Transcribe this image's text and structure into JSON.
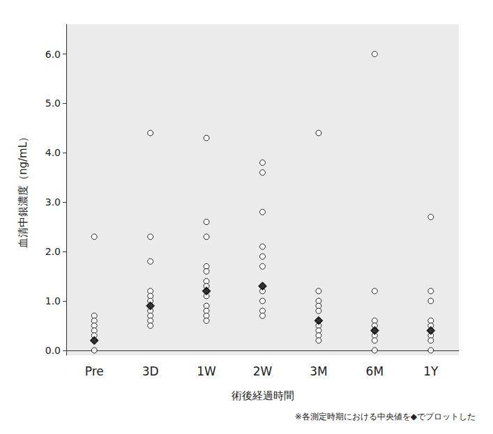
{
  "chart_data": {
    "type": "scatter",
    "x_label": "術後経過時間",
    "y_label": "血清中銀濃度（ng/mL）",
    "note": "※各測定時期における中央値を◆でプロットした",
    "categories": [
      "Pre",
      "3D",
      "1W",
      "2W",
      "3M",
      "6M",
      "1Y"
    ],
    "series": [
      {
        "marker": "circle",
        "color": "#ffffff",
        "values": [
          [
            2.3,
            0.7,
            0.6,
            0.5,
            0.4,
            0.3,
            0.2,
            0.0
          ],
          [
            4.4,
            2.3,
            1.8,
            1.2,
            1.1,
            1.0,
            0.9,
            0.8,
            0.7,
            0.6,
            0.5
          ],
          [
            4.3,
            2.6,
            2.3,
            1.7,
            1.6,
            1.4,
            1.3,
            1.2,
            1.1,
            0.9,
            0.8,
            0.7,
            0.6
          ],
          [
            3.8,
            3.6,
            2.8,
            2.1,
            1.9,
            1.7,
            1.3,
            1.2,
            1.0,
            0.8,
            0.7
          ],
          [
            4.4,
            1.2,
            1.0,
            0.9,
            0.8,
            0.6,
            0.5,
            0.4,
            0.3,
            0.2
          ],
          [
            6.0,
            1.2,
            0.6,
            0.5,
            0.4,
            0.3,
            0.2,
            0.0
          ],
          [
            2.7,
            1.2,
            1.0,
            0.6,
            0.5,
            0.4,
            0.3,
            0.2,
            0.0
          ]
        ]
      },
      {
        "marker": "diamond",
        "color": "#000000",
        "values": [
          0.2,
          0.9,
          1.2,
          1.3,
          0.6,
          0.4,
          0.4
        ]
      }
    ],
    "ylim": [
      -0.1,
      6.6
    ],
    "yticks": [
      {
        "value": 0,
        "label": "0.0"
      },
      {
        "value": 1,
        "label": "1.0"
      },
      {
        "value": 2,
        "label": "2.0"
      },
      {
        "value": 3,
        "label": "3.0"
      },
      {
        "value": 4,
        "label": "4.0"
      },
      {
        "value": 5,
        "label": "5.0"
      },
      {
        "value": 6,
        "label": "6.0"
      }
    ],
    "grid": false
  }
}
